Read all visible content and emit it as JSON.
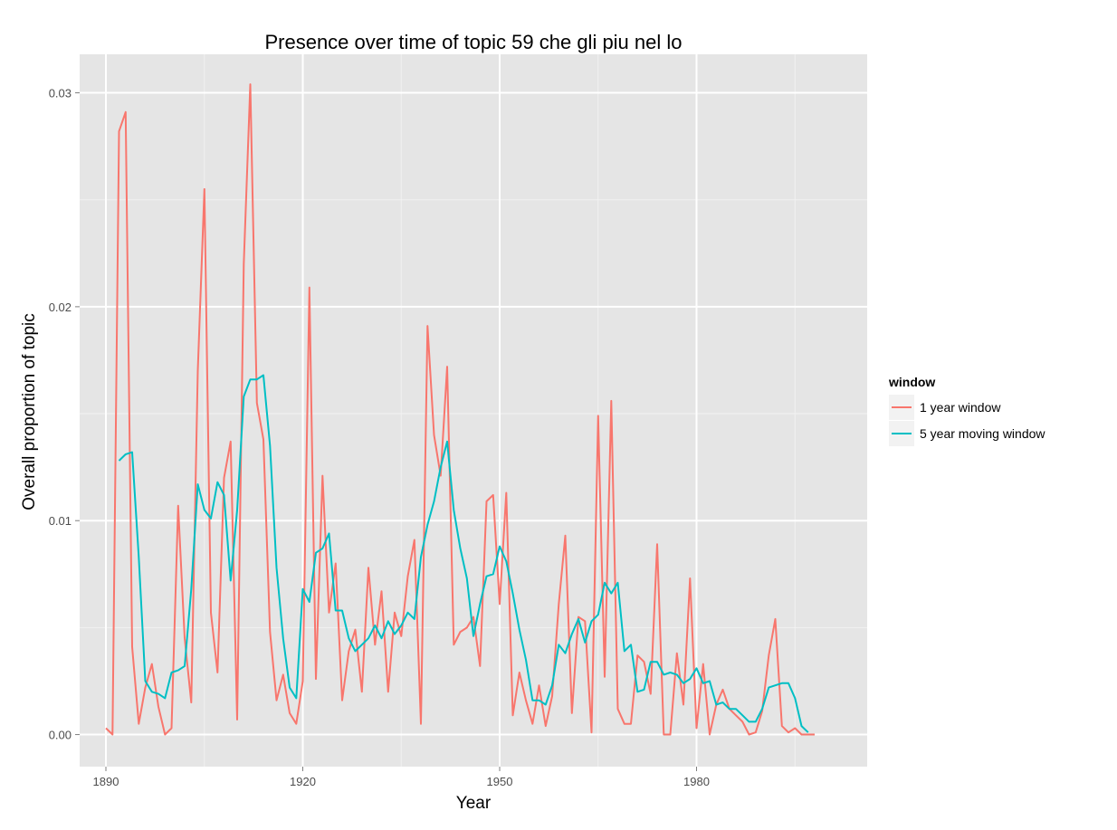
{
  "chart_data": {
    "type": "line",
    "title": "Presence over time of topic 59 che gli piu nel lo",
    "xlabel": "Year",
    "ylabel": "Overall proportion of topic",
    "xlim": [
      1886,
      2006
    ],
    "ylim": [
      -0.0015,
      0.0318
    ],
    "x_ticks": [
      1890,
      1920,
      1950,
      1980
    ],
    "x_tick_labels": [
      "1890",
      "1920",
      "1950",
      "1980"
    ],
    "y_ticks": [
      0.0,
      0.01,
      0.02,
      0.03
    ],
    "y_tick_labels": [
      "0.00",
      "0.01",
      "0.02",
      "0.03"
    ],
    "grid": true,
    "legend": {
      "title": "window",
      "position": "right"
    },
    "series": [
      {
        "name": "1 year window",
        "color": "#F8766D",
        "points": [
          [
            1890,
            0.0003
          ],
          [
            1891,
            0.0
          ],
          [
            1892,
            0.0282
          ],
          [
            1893,
            0.0291
          ],
          [
            1894,
            0.0041
          ],
          [
            1895,
            0.0005
          ],
          [
            1896,
            0.0022
          ],
          [
            1897,
            0.0033
          ],
          [
            1898,
            0.0013
          ],
          [
            1899,
            0.0
          ],
          [
            1900,
            0.0003
          ],
          [
            1901,
            0.0107
          ],
          [
            1902,
            0.0045
          ],
          [
            1903,
            0.0015
          ],
          [
            1904,
            0.017
          ],
          [
            1905,
            0.0255
          ],
          [
            1906,
            0.0057
          ],
          [
            1907,
            0.0029
          ],
          [
            1908,
            0.012
          ],
          [
            1909,
            0.0137
          ],
          [
            1910,
            0.0007
          ],
          [
            1911,
            0.022
          ],
          [
            1912,
            0.0304
          ],
          [
            1913,
            0.0155
          ],
          [
            1914,
            0.0138
          ],
          [
            1915,
            0.0048
          ],
          [
            1916,
            0.0016
          ],
          [
            1917,
            0.0028
          ],
          [
            1918,
            0.001
          ],
          [
            1919,
            0.0005
          ],
          [
            1920,
            0.0025
          ],
          [
            1921,
            0.0209
          ],
          [
            1922,
            0.0026
          ],
          [
            1923,
            0.0121
          ],
          [
            1924,
            0.0057
          ],
          [
            1925,
            0.008
          ],
          [
            1926,
            0.0016
          ],
          [
            1927,
            0.0039
          ],
          [
            1928,
            0.0049
          ],
          [
            1929,
            0.002
          ],
          [
            1930,
            0.0078
          ],
          [
            1931,
            0.0042
          ],
          [
            1932,
            0.0067
          ],
          [
            1933,
            0.002
          ],
          [
            1934,
            0.0057
          ],
          [
            1935,
            0.0046
          ],
          [
            1936,
            0.0074
          ],
          [
            1937,
            0.0091
          ],
          [
            1938,
            0.0005
          ],
          [
            1939,
            0.0191
          ],
          [
            1940,
            0.014
          ],
          [
            1941,
            0.0121
          ],
          [
            1942,
            0.0172
          ],
          [
            1943,
            0.0042
          ],
          [
            1944,
            0.0048
          ],
          [
            1945,
            0.005
          ],
          [
            1946,
            0.0055
          ],
          [
            1947,
            0.0032
          ],
          [
            1948,
            0.0109
          ],
          [
            1949,
            0.0112
          ],
          [
            1950,
            0.0061
          ],
          [
            1951,
            0.0113
          ],
          [
            1952,
            0.0009
          ],
          [
            1953,
            0.0029
          ],
          [
            1954,
            0.0016
          ],
          [
            1955,
            0.0005
          ],
          [
            1956,
            0.0023
          ],
          [
            1957,
            0.0004
          ],
          [
            1958,
            0.0018
          ],
          [
            1959,
            0.0061
          ],
          [
            1960,
            0.0093
          ],
          [
            1961,
            0.001
          ],
          [
            1962,
            0.0055
          ],
          [
            1963,
            0.0053
          ],
          [
            1964,
            0.0001
          ],
          [
            1965,
            0.0149
          ],
          [
            1966,
            0.0027
          ],
          [
            1967,
            0.0156
          ],
          [
            1968,
            0.0012
          ],
          [
            1969,
            0.0005
          ],
          [
            1970,
            0.0005
          ],
          [
            1971,
            0.0037
          ],
          [
            1972,
            0.0034
          ],
          [
            1973,
            0.0019
          ],
          [
            1974,
            0.0089
          ],
          [
            1975,
            0.0
          ],
          [
            1976,
            0.0
          ],
          [
            1977,
            0.0038
          ],
          [
            1978,
            0.0014
          ],
          [
            1979,
            0.0073
          ],
          [
            1980,
            0.0003
          ],
          [
            1981,
            0.0033
          ],
          [
            1982,
            0.0
          ],
          [
            1983,
            0.0014
          ],
          [
            1984,
            0.0021
          ],
          [
            1985,
            0.0012
          ],
          [
            1986,
            0.0009
          ],
          [
            1987,
            0.0006
          ],
          [
            1988,
            0.0
          ],
          [
            1989,
            0.0001
          ],
          [
            1990,
            0.0011
          ],
          [
            1991,
            0.0037
          ],
          [
            1992,
            0.0054
          ],
          [
            1993,
            0.0004
          ],
          [
            1994,
            0.0001
          ],
          [
            1995,
            0.0003
          ],
          [
            1996,
            0.0
          ],
          [
            1997,
            0.0
          ],
          [
            1998,
            0.0
          ]
        ]
      },
      {
        "name": "5 year moving window",
        "color": "#00BFC4",
        "points": [
          [
            1892,
            0.0128
          ],
          [
            1893,
            0.0131
          ],
          [
            1894,
            0.0132
          ],
          [
            1895,
            0.0083
          ],
          [
            1896,
            0.0025
          ],
          [
            1897,
            0.002
          ],
          [
            1898,
            0.0019
          ],
          [
            1899,
            0.0017
          ],
          [
            1900,
            0.0029
          ],
          [
            1901,
            0.003
          ],
          [
            1902,
            0.0032
          ],
          [
            1903,
            0.0068
          ],
          [
            1904,
            0.0117
          ],
          [
            1905,
            0.0105
          ],
          [
            1906,
            0.0101
          ],
          [
            1907,
            0.0118
          ],
          [
            1908,
            0.0112
          ],
          [
            1909,
            0.0072
          ],
          [
            1910,
            0.0105
          ],
          [
            1911,
            0.0158
          ],
          [
            1912,
            0.0166
          ],
          [
            1913,
            0.0166
          ],
          [
            1914,
            0.0168
          ],
          [
            1915,
            0.0135
          ],
          [
            1916,
            0.0078
          ],
          [
            1917,
            0.0045
          ],
          [
            1918,
            0.0022
          ],
          [
            1919,
            0.0017
          ],
          [
            1920,
            0.0068
          ],
          [
            1921,
            0.0062
          ],
          [
            1922,
            0.0085
          ],
          [
            1923,
            0.0087
          ],
          [
            1924,
            0.0094
          ],
          [
            1925,
            0.0058
          ],
          [
            1926,
            0.0058
          ],
          [
            1927,
            0.0045
          ],
          [
            1928,
            0.0039
          ],
          [
            1929,
            0.0042
          ],
          [
            1930,
            0.0045
          ],
          [
            1931,
            0.0051
          ],
          [
            1932,
            0.0045
          ],
          [
            1933,
            0.0053
          ],
          [
            1934,
            0.0047
          ],
          [
            1935,
            0.0051
          ],
          [
            1936,
            0.0057
          ],
          [
            1937,
            0.0054
          ],
          [
            1938,
            0.0083
          ],
          [
            1939,
            0.0098
          ],
          [
            1940,
            0.0109
          ],
          [
            1941,
            0.0125
          ],
          [
            1942,
            0.0137
          ],
          [
            1943,
            0.0105
          ],
          [
            1944,
            0.0087
          ],
          [
            1945,
            0.0073
          ],
          [
            1946,
            0.0046
          ],
          [
            1947,
            0.0061
          ],
          [
            1948,
            0.0074
          ],
          [
            1949,
            0.0075
          ],
          [
            1950,
            0.0088
          ],
          [
            1951,
            0.0081
          ],
          [
            1952,
            0.0066
          ],
          [
            1953,
            0.0049
          ],
          [
            1954,
            0.0035
          ],
          [
            1955,
            0.0016
          ],
          [
            1956,
            0.0016
          ],
          [
            1957,
            0.0014
          ],
          [
            1958,
            0.0023
          ],
          [
            1959,
            0.0042
          ],
          [
            1960,
            0.0038
          ],
          [
            1961,
            0.0047
          ],
          [
            1962,
            0.0054
          ],
          [
            1963,
            0.0043
          ],
          [
            1964,
            0.0053
          ],
          [
            1965,
            0.0056
          ],
          [
            1966,
            0.0071
          ],
          [
            1967,
            0.0066
          ],
          [
            1968,
            0.0071
          ],
          [
            1969,
            0.0039
          ],
          [
            1970,
            0.0042
          ],
          [
            1971,
            0.002
          ],
          [
            1972,
            0.0021
          ],
          [
            1973,
            0.0034
          ],
          [
            1974,
            0.0034
          ],
          [
            1975,
            0.0028
          ],
          [
            1976,
            0.0029
          ],
          [
            1977,
            0.0028
          ],
          [
            1978,
            0.0024
          ],
          [
            1979,
            0.0026
          ],
          [
            1980,
            0.0031
          ],
          [
            1981,
            0.0024
          ],
          [
            1982,
            0.0025
          ],
          [
            1983,
            0.0014
          ],
          [
            1984,
            0.0015
          ],
          [
            1985,
            0.0012
          ],
          [
            1986,
            0.0012
          ],
          [
            1987,
            0.0009
          ],
          [
            1988,
            0.0006
          ],
          [
            1989,
            0.0006
          ],
          [
            1990,
            0.0012
          ],
          [
            1991,
            0.0022
          ],
          [
            1992,
            0.0023
          ],
          [
            1993,
            0.0024
          ],
          [
            1994,
            0.0024
          ],
          [
            1995,
            0.0017
          ],
          [
            1996,
            0.0004
          ],
          [
            1997,
            0.0001
          ]
        ]
      }
    ]
  }
}
